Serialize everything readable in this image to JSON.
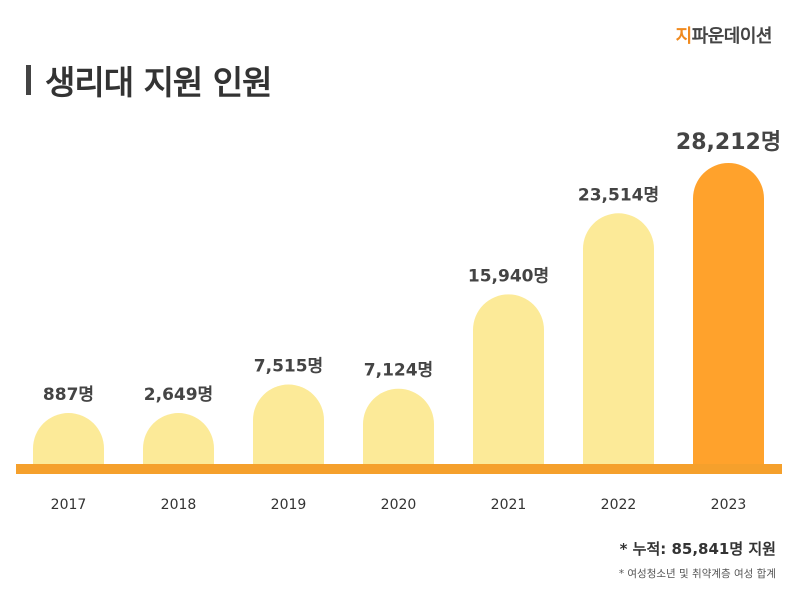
{
  "brand": {
    "prefix": "지",
    "rest": "파운데이션",
    "accent_color": "#f08a1f"
  },
  "title": "생리대 지원 인원",
  "colors": {
    "bar_default": "#fcea98",
    "bar_highlight": "#ffa22c",
    "baseline": "#f5a02c"
  },
  "chart_data": {
    "type": "bar",
    "title": "생리대 지원 인원",
    "categories": [
      "2017",
      "2018",
      "2019",
      "2020",
      "2021",
      "2022",
      "2023"
    ],
    "values": [
      887,
      2649,
      7515,
      7124,
      15940,
      23514,
      28212
    ],
    "value_labels": [
      "887명",
      "2,649명",
      "7,515명",
      "7,124명",
      "15,940명",
      "23,514명",
      "28,212명"
    ],
    "highlight_index": 6,
    "xlabel": "",
    "ylabel": "",
    "grid": false,
    "legend": "none"
  },
  "footnotes": {
    "total": "* 누적: 85,841명 지원",
    "note": "* 여성청소년 및 취약계층 여성 합계"
  }
}
